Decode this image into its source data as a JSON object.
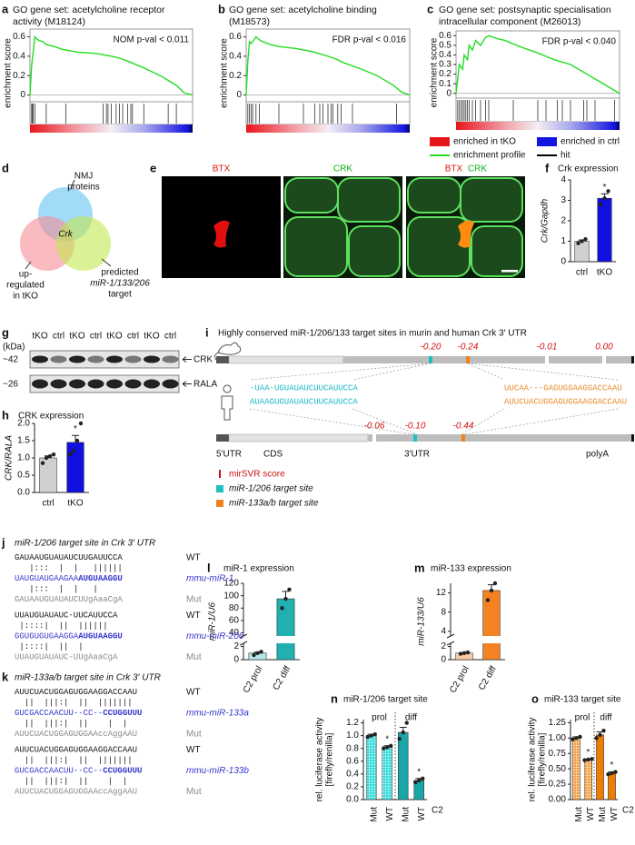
{
  "chart_data": [
    {
      "type": "gsea",
      "panel": "a",
      "title": [
        "GO gene set: acetylcholine receptor",
        "activity (M18124)"
      ],
      "ylabel": "enrichment score",
      "annotation": "NOM p-val  < 0.011",
      "color": "#22dd22",
      "x": [
        0,
        0.01,
        0.02,
        0.03,
        0.04,
        0.06,
        0.08,
        0.1,
        0.15,
        0.2,
        0.3,
        0.4,
        0.5,
        0.55,
        0.6,
        0.7,
        0.8,
        0.9,
        0.95,
        1
      ],
      "y": [
        0,
        0.3,
        0.45,
        0.6,
        0.58,
        0.56,
        0.55,
        0.52,
        0.5,
        0.47,
        0.44,
        0.43,
        0.4,
        0.38,
        0.35,
        0.28,
        0.2,
        0.1,
        0.02,
        0
      ],
      "hits": [
        0.01,
        0.015,
        0.02,
        0.03,
        0.1,
        0.22,
        0.45,
        0.47,
        0.48,
        0.5,
        0.53,
        0.55,
        0.57,
        0.6,
        0.62,
        0.63,
        0.7,
        0.85,
        0.9
      ],
      "xlim": [
        0,
        1
      ],
      "ylim": [
        -0.07,
        0.68
      ],
      "yticks": [
        0,
        0.2,
        0.4,
        0.6
      ]
    },
    {
      "type": "gsea",
      "panel": "b",
      "title": [
        "GO gene set: acetylcholine binding",
        "(M18573)"
      ],
      "ylabel": "enrichment score",
      "annotation": "FDR p-val  < 0.016",
      "color": "#22dd22",
      "x": [
        0,
        0.01,
        0.02,
        0.03,
        0.04,
        0.06,
        0.08,
        0.1,
        0.15,
        0.2,
        0.3,
        0.4,
        0.5,
        0.55,
        0.6,
        0.7,
        0.8,
        0.9,
        0.95,
        1
      ],
      "y": [
        0,
        0.35,
        0.55,
        0.53,
        0.55,
        0.6,
        0.57,
        0.55,
        0.52,
        0.5,
        0.48,
        0.45,
        0.4,
        0.37,
        0.33,
        0.27,
        0.2,
        0.1,
        0.03,
        0
      ],
      "hits": [
        0.01,
        0.02,
        0.03,
        0.04,
        0.06,
        0.08,
        0.2,
        0.35,
        0.42,
        0.45,
        0.47,
        0.5,
        0.52,
        0.53,
        0.56,
        0.58,
        0.65,
        0.92
      ],
      "xlim": [
        0,
        1
      ],
      "ylim": [
        -0.07,
        0.68
      ],
      "yticks": [
        0,
        0.2,
        0.4,
        0.6
      ]
    },
    {
      "type": "gsea",
      "panel": "c",
      "title": [
        "GO gene set: postsynaptic specialisation",
        "intracellular component (M26013)"
      ],
      "ylabel": "enrichment score",
      "annotation": "FDR p-val  < 0.040",
      "color": "#22dd22",
      "x": [
        0,
        0.02,
        0.04,
        0.05,
        0.07,
        0.08,
        0.1,
        0.12,
        0.15,
        0.18,
        0.2,
        0.25,
        0.3,
        0.4,
        0.5,
        0.6,
        0.7,
        0.8,
        0.9,
        1
      ],
      "y": [
        0,
        0.3,
        0.25,
        0.4,
        0.35,
        0.5,
        0.45,
        0.55,
        0.5,
        0.58,
        0.6,
        0.57,
        0.55,
        0.48,
        0.42,
        0.35,
        0.3,
        0.2,
        0.1,
        0
      ],
      "hits": [
        0.01,
        0.02,
        0.03,
        0.04,
        0.05,
        0.06,
        0.07,
        0.08,
        0.1,
        0.12,
        0.15,
        0.18,
        0.2,
        0.35,
        0.5,
        0.55,
        0.62,
        0.65,
        0.7,
        0.78,
        0.8,
        0.85,
        0.97
      ],
      "xlim": [
        0,
        1
      ],
      "ylim": [
        -0.05,
        0.65
      ],
      "yticks": [
        0,
        0.1,
        0.2,
        0.3,
        0.4,
        0.5,
        0.6
      ],
      "legend": [
        {
          "label": "enriched in tKO",
          "color": "#e8141c",
          "kind": "box"
        },
        {
          "label": "enriched in ctrl",
          "color": "#1414e0",
          "kind": "box"
        },
        {
          "label": "enrichment profile",
          "color": "#22dd22",
          "kind": "line"
        },
        {
          "label": "hit",
          "color": "#000000",
          "kind": "line"
        }
      ]
    },
    {
      "type": "bar",
      "panel": "f",
      "title": "Crk expression",
      "ylabel": "Crk/Gapdh",
      "categories": [
        "ctrl",
        "tKO"
      ],
      "values": [
        1.0,
        3.1
      ],
      "errors": [
        0.06,
        0.22
      ],
      "points": [
        [
          0.9,
          1.0,
          1.1
        ],
        [
          2.8,
          3.1,
          3.45
        ]
      ],
      "colors": [
        "#d0d0d0",
        "#1010e0"
      ],
      "ylim": [
        0,
        4
      ],
      "yticks": [
        0,
        1,
        2,
        3,
        4
      ],
      "annotations": [
        {
          "index": 1,
          "text": "*"
        }
      ]
    },
    {
      "type": "bar",
      "panel": "h",
      "title": "CRK expression",
      "ylabel": "CRK/RALA",
      "categories": [
        "ctrl",
        "tKO"
      ],
      "values": [
        1.0,
        1.45
      ],
      "errors": [
        0.06,
        0.2
      ],
      "points": [
        [
          0.85,
          1.0,
          1.05,
          1.1
        ],
        [
          1.1,
          1.2,
          1.5,
          2.0
        ]
      ],
      "colors": [
        "#d0d0d0",
        "#1010e0"
      ],
      "ylim": [
        0,
        2
      ],
      "yticks": [
        {
          "value": 0,
          "label": "0.0"
        },
        0.5,
        {
          "value": 1,
          "label": "1.0"
        },
        1.5,
        {
          "value": 2,
          "label": "2.0"
        }
      ],
      "annotations": [
        {
          "index": 1,
          "text": "*"
        }
      ]
    },
    {
      "type": "bar",
      "panel": "l",
      "title": "miR-1 expression",
      "ylabel": "miR-1/U6",
      "categories": [
        "C2 prol",
        "C2 diff"
      ],
      "values": [
        1.0,
        95
      ],
      "errors": [
        0.15,
        12
      ],
      "points": [
        [
          0.7,
          1.0,
          1.2
        ],
        [
          80,
          95,
          110
        ]
      ],
      "colors": [
        "#b4e6e6",
        "#20b0b0"
      ],
      "axis_segments": [
        {
          "ylim": [
            0,
            2.5
          ],
          "yticks": [
            0,
            2
          ]
        },
        {
          "ylim": [
            35,
            120
          ],
          "yticks": [
            40,
            60,
            80,
            100,
            120
          ]
        }
      ]
    },
    {
      "type": "bar",
      "panel": "m",
      "title": "miR-133 expression",
      "ylabel": "miR-133/U6",
      "categories": [
        "C2 prol",
        "C2 diff"
      ],
      "values": [
        1.0,
        12.5
      ],
      "errors": [
        0.05,
        1.2
      ],
      "points": [
        [
          0.9,
          1.0,
          1.1
        ],
        [
          10.5,
          12.5,
          14
        ]
      ],
      "colors": [
        "#f8caa0",
        "#f58220"
      ],
      "axis_segments": [
        {
          "ylim": [
            0,
            2.5
          ],
          "yticks": [
            0,
            2
          ]
        },
        {
          "ylim": [
            3,
            14
          ],
          "yticks": [
            4,
            8,
            12
          ]
        }
      ]
    },
    {
      "type": "bar",
      "panel": "n",
      "title": "miR-1/206 target site",
      "ylabel": [
        "rel. luciferase activity",
        "[firefly/renilla]"
      ],
      "xlabel": "C2",
      "groups": [
        "prol",
        "diff"
      ],
      "categories": [
        "Mut",
        "WT",
        "Mut",
        "WT"
      ],
      "values": [
        1.0,
        0.82,
        1.05,
        0.3
      ],
      "errors": [
        0.02,
        0.02,
        0.08,
        0.03
      ],
      "points": [
        [
          0.98,
          1.0,
          1.02
        ],
        [
          0.8,
          0.82,
          0.84
        ],
        [
          0.95,
          1.05,
          1.2
        ],
        [
          0.27,
          0.3,
          0.33
        ]
      ],
      "colors": [
        "#40dcdc",
        "#40dcdc",
        "#1aa6a6",
        "#1aa6a6"
      ],
      "hatch": [
        true,
        true,
        false,
        false
      ],
      "ylim": [
        0,
        1.25
      ],
      "yticks": [
        {
          "value": 0,
          "label": "0.0"
        },
        0.2,
        0.4,
        0.6,
        0.8,
        {
          "value": 1,
          "label": "1.0"
        },
        1.2
      ],
      "annotations": [
        {
          "index": 1,
          "text": "*"
        },
        {
          "index": 3,
          "text": "*"
        }
      ]
    },
    {
      "type": "bar",
      "panel": "o",
      "title": "miR-133 target site",
      "ylabel": [
        "rel. luciferase activity",
        "[firefly/renilla]"
      ],
      "xlabel": "C2",
      "groups": [
        "prol",
        "diff"
      ],
      "categories": [
        "Mut",
        "WT",
        "Mut",
        "WT"
      ],
      "values": [
        1.0,
        0.65,
        1.05,
        0.43
      ],
      "errors": [
        0.02,
        0.01,
        0.05,
        0.02
      ],
      "points": [
        [
          0.98,
          1.0,
          1.02
        ],
        [
          0.64,
          0.65,
          0.66
        ],
        [
          1.0,
          1.05,
          1.12
        ],
        [
          0.41,
          0.43,
          0.45
        ]
      ],
      "colors": [
        "#f7a64a",
        "#f7a64a",
        "#f07c00",
        "#f07c00"
      ],
      "hatch": [
        true,
        true,
        false,
        false
      ],
      "ylim": [
        0,
        1.3
      ],
      "yticks": [
        {
          "value": 0,
          "label": "0.00"
        },
        0.25,
        {
          "value": 0.5,
          "label": "0.50"
        },
        0.75,
        {
          "value": 1,
          "label": "1.00"
        },
        1.25
      ],
      "annotations": [
        {
          "index": 1,
          "text": "*"
        },
        {
          "index": 3,
          "text": "*"
        }
      ]
    }
  ],
  "venn": {
    "panel": "d",
    "intersection": "Crk",
    "sets": [
      {
        "lines": [
          "NMJ",
          "proteins"
        ]
      },
      {
        "lines": [
          "up-",
          "regulated",
          "in tKO"
        ]
      },
      {
        "lines": [
          "predicted",
          "miR-1/133/206",
          "target"
        ]
      }
    ]
  },
  "microscopy": {
    "panel": "e",
    "images": [
      {
        "labels": [
          {
            "text": "BTX",
            "color": "#e01010"
          }
        ]
      },
      {
        "labels": [
          {
            "text": "CRK",
            "color": "#10b010"
          }
        ]
      },
      {
        "labels": [
          {
            "text": "BTX",
            "color": "#e01010"
          },
          {
            "text": "CRK",
            "color": "#10b010"
          }
        ]
      }
    ]
  },
  "blot": {
    "panel": "g",
    "unit": "(kDa)",
    "lanes": [
      "tKO",
      "ctrl",
      "tKO",
      "ctrl",
      "tKO",
      "ctrl",
      "tKO",
      "ctrl"
    ],
    "rows": [
      {
        "size": "~42",
        "protein": "CRK"
      },
      {
        "size": "~26",
        "protein": "RALA"
      }
    ]
  },
  "utr": {
    "panel": "i",
    "title": "Highly conserved miR-1/206/133 target sites in murin and human Crk 3′ UTR",
    "mouse_scores": [
      {
        "value": -0.2,
        "label": "-0.20"
      },
      {
        "value": -0.24,
        "label": "-0.24"
      },
      {
        "value": -0.01,
        "label": "-0.01"
      },
      {
        "value": 0,
        "label": "0.00"
      }
    ],
    "human_scores": [
      {
        "value": -0.06,
        "label": "-0.06"
      },
      {
        "value": -0.1,
        "label": "-0.10"
      },
      {
        "value": -0.44,
        "label": "-0.44"
      }
    ],
    "mouse_seqs": [
      "-UAA-UGUAUAUCUUCAUUCCA",
      "UUCAA---GAGUGGAAGGACCAAU"
    ],
    "human_seqs": [
      "AUAAGUGUAUAUCUUCAUUCCA",
      "AUUCUACUGGAGUGGAAGGACCAAU"
    ],
    "regions": [
      "5'UTR",
      "CDS",
      "3'UTR",
      "polyA"
    ],
    "legend": [
      "mirSVR score",
      "miR-1/206 target site",
      "miR-133a/b target site"
    ]
  },
  "alignments": [
    {
      "panel": "j",
      "title": "miR-1/206 target site in Crk 3′ UTR",
      "blocks": [
        {
          "lines": [
            {
              "seq": "GAUAAUGUAUAUCUUGAUUCCA",
              "label": "WT"
            },
            {
              "seq": "   |:::  |  |   ||||||"
            },
            {
              "seq": "UAUGUAUGAAGAA",
              "bold": "AUGUAAGGU",
              "label": "mmu-miR-1"
            },
            {
              "seq": "   |:::  |  |   |"
            },
            {
              "seq": "GAUAAUGUAUAUCUUgAaaCgA",
              "label": "Mut"
            }
          ]
        },
        {
          "lines": [
            {
              "seq": "UUAUGUAUAUC-UUCAUUCCA",
              "label": "WT"
            },
            {
              "seq": " |::::|  ||  ||||||"
            },
            {
              "seq": "GGUGUGUGAAGGA",
              "bold": "AUGUAAGGU",
              "label": "mmu-miR-206"
            },
            {
              "seq": " |::::|  ||  |"
            },
            {
              "seq": "UUAUGUAUAUC-UUgAaaCgA",
              "label": "Mut"
            }
          ]
        }
      ]
    },
    {
      "panel": "k",
      "title": "miR-133a/b target site in Crk 3′ UTR",
      "blocks": [
        {
          "lines": [
            {
              "seq": "AUUCUACUGGAGUGGAAGGACCAAU",
              "label": "WT"
            },
            {
              "seq": "  ||  |||:|  ||  |||||||"
            },
            {
              "seq": "GUCGACCAACUU--CC--",
              "bold": "CCUGGUUU",
              "label": "mmu-miR-133a"
            },
            {
              "seq": "  ||  |||:|  ||    |  |"
            },
            {
              "seq": "AUUCUACUGGAGUGGAAccAggAAU",
              "label": "Mut"
            }
          ]
        },
        {
          "lines": [
            {
              "seq": "AUUCUACUGGAGUGGAAGGACCAAU",
              "label": "WT"
            },
            {
              "seq": "  ||  |||:|  ||  |||||||"
            },
            {
              "seq": "GUCGACCAACUU--CC--",
              "bold": "CCUGGUUU",
              "label": "mmu-miR-133b"
            },
            {
              "seq": "  ||  |||:|  ||    |  |"
            },
            {
              "seq": "AUUCUACUGGAGUGGAAccAggAAU",
              "label": "Mut"
            }
          ]
        }
      ]
    }
  ]
}
